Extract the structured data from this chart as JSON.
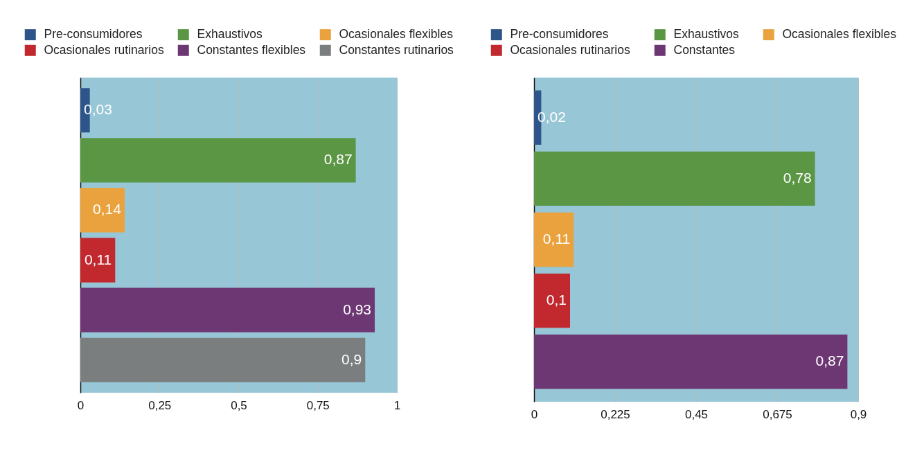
{
  "chart_data": [
    {
      "type": "bar",
      "orientation": "horizontal",
      "categories": [
        null,
        null,
        null,
        null,
        null,
        null
      ],
      "series": [
        {
          "name": "Pre-consumidores",
          "color": "#2d5589",
          "values": [
            0.03,
            null,
            null,
            null,
            null,
            null
          ],
          "value_labels": [
            "0,03",
            null,
            null,
            null,
            null,
            null
          ]
        },
        {
          "name": "Exhaustivos",
          "color": "#5b9645",
          "values": [
            null,
            0.87,
            null,
            null,
            null,
            null
          ],
          "value_labels": [
            null,
            "0,87",
            null,
            null,
            null,
            null
          ]
        },
        {
          "name": "Ocasionales flexibles",
          "color": "#e9a23d",
          "values": [
            null,
            null,
            0.14,
            null,
            null,
            null
          ],
          "value_labels": [
            null,
            null,
            "0,14",
            null,
            null,
            null
          ]
        },
        {
          "name": "Ocasionales rutinarios",
          "color": "#c1292f",
          "values": [
            null,
            null,
            null,
            0.11,
            null,
            null
          ],
          "value_labels": [
            null,
            null,
            null,
            "0,11",
            null,
            null
          ]
        },
        {
          "name": "Constantes flexibles",
          "color": "#6d3774",
          "values": [
            null,
            null,
            null,
            null,
            0.93,
            null
          ],
          "value_labels": [
            null,
            null,
            null,
            null,
            "0,93",
            null
          ]
        },
        {
          "name": "Constantes rutinarios",
          "color": "#7b7e7f",
          "values": [
            null,
            null,
            null,
            null,
            null,
            0.9
          ],
          "value_labels": [
            null,
            null,
            null,
            null,
            null,
            "0,9"
          ]
        }
      ],
      "xlim": [
        0,
        1
      ],
      "xticks": [
        {
          "value": 0,
          "label": "0"
        },
        {
          "value": 0.25,
          "label": "0,25"
        },
        {
          "value": 0.5,
          "label": "0,5"
        },
        {
          "value": 0.75,
          "label": "0,75"
        },
        {
          "value": 1,
          "label": "1"
        }
      ],
      "grid": "x",
      "legend": "top"
    },
    {
      "type": "bar",
      "orientation": "horizontal",
      "categories": [
        null,
        null,
        null,
        null,
        null
      ],
      "series": [
        {
          "name": "Pre-consumidores",
          "color": "#2d5589",
          "values": [
            0.02,
            null,
            null,
            null,
            null
          ],
          "value_labels": [
            "0,02",
            null,
            null,
            null,
            null
          ]
        },
        {
          "name": "Exhaustivos",
          "color": "#5b9645",
          "values": [
            null,
            0.78,
            null,
            null,
            null
          ],
          "value_labels": [
            null,
            "0,78",
            null,
            null,
            null
          ]
        },
        {
          "name": "Ocasionales flexibles",
          "color": "#e9a23d",
          "values": [
            null,
            null,
            0.11,
            null,
            null
          ],
          "value_labels": [
            null,
            null,
            "0,11",
            null,
            null
          ]
        },
        {
          "name": "Ocasionales rutinarios",
          "color": "#c1292f",
          "values": [
            null,
            null,
            null,
            0.1,
            null
          ],
          "value_labels": [
            null,
            null,
            null,
            "0,1",
            null
          ]
        },
        {
          "name": "Constantes",
          "color": "#6d3774",
          "values": [
            null,
            null,
            null,
            null,
            0.87
          ],
          "value_labels": [
            null,
            null,
            null,
            null,
            "0,87"
          ]
        }
      ],
      "xlim": [
        0,
        0.9
      ],
      "xticks": [
        {
          "value": 0,
          "label": "0"
        },
        {
          "value": 0.225,
          "label": "0,225"
        },
        {
          "value": 0.45,
          "label": "0,45"
        },
        {
          "value": 0.675,
          "label": "0,675"
        },
        {
          "value": 0.9,
          "label": "0,9"
        }
      ],
      "grid": "x",
      "legend": "top"
    }
  ]
}
